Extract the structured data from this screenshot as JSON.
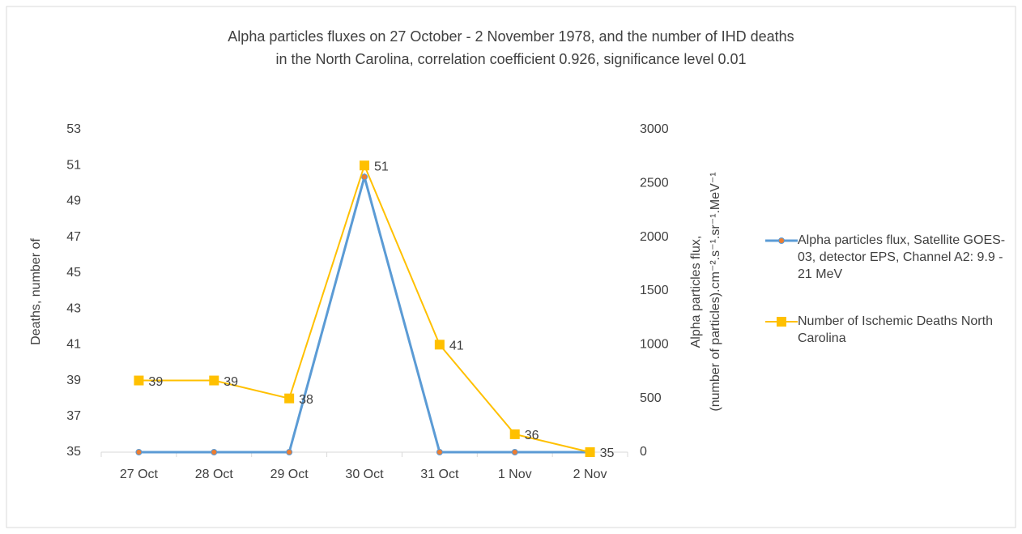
{
  "chart_data": {
    "type": "line",
    "title": [
      "Alpha particles fluxes on 27 October - 2 November 1978, and the number of IHD deaths",
      "in the North Carolina, correlation coefficient 0.926, significance level 0.01"
    ],
    "ylabel": "Deaths, number of",
    "y2label": [
      "Alpha particles flux,",
      "(number of particles).cm⁻².s⁻¹.sr⁻¹.MeV⁻¹"
    ],
    "categories": [
      "27 Oct",
      "28 Oct",
      "29 Oct",
      "30 Oct",
      "31 Oct",
      "1 Nov",
      "2 Nov"
    ],
    "series": [
      {
        "name": "Alpha particles flux, Satellite GOES-03, detector EPS, Channel A2: 9.9 - 21 MeV",
        "color": "#5b9bd5",
        "marker_color": "#ed7d31",
        "axis": "y2",
        "values": [
          0,
          0,
          0,
          2560,
          0,
          0,
          0
        ]
      },
      {
        "name": "Number of Ischemic Deaths North Carolina",
        "color": "#ffc000",
        "axis": "y",
        "values": [
          39,
          39,
          38,
          51,
          41,
          36,
          35
        ]
      }
    ],
    "ylim": [
      35,
      53
    ],
    "yticks": [
      35,
      37,
      39,
      41,
      43,
      45,
      47,
      49,
      51,
      53
    ],
    "y2lim": [
      0,
      3000
    ],
    "y2ticks": [
      0,
      500,
      1000,
      1500,
      2000,
      2500,
      3000
    ],
    "legend": "right",
    "grid": false
  }
}
